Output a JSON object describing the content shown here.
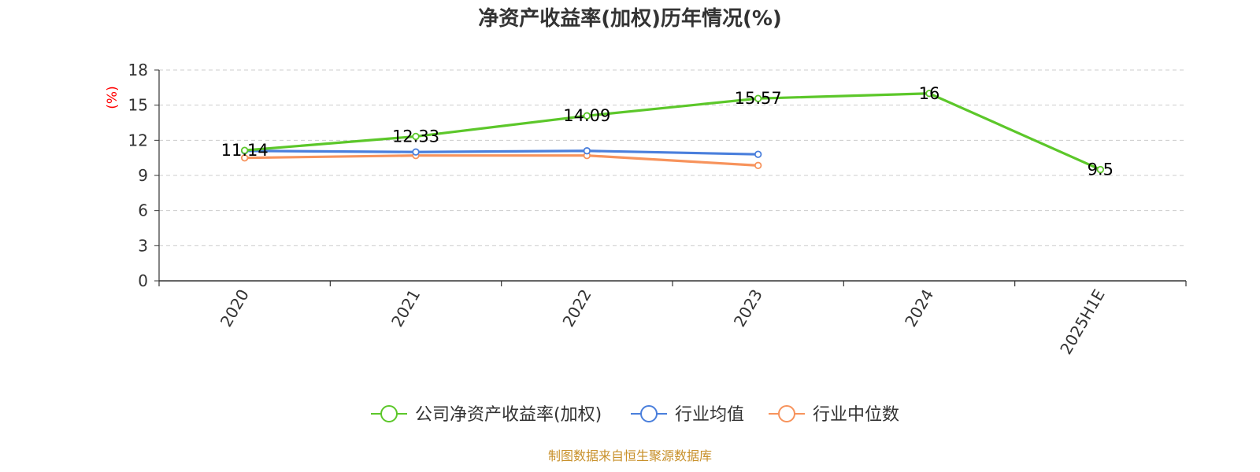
{
  "chart_data": {
    "type": "line",
    "title": "净资产收益率(加权)历年情况(%)",
    "ylabel": "(%)",
    "categories": [
      "2020",
      "2021",
      "2022",
      "2023",
      "2024",
      "2025H1E"
    ],
    "ylim": [
      0,
      18
    ],
    "yticks": [
      "0",
      "3",
      "6",
      "9",
      "12",
      "15",
      "18"
    ],
    "grid": true,
    "legend_position": "bottom",
    "series": [
      {
        "name": "公司净资产收益率(加权)",
        "color": "#5cc72a",
        "values": [
          11.14,
          12.33,
          14.09,
          15.57,
          16,
          9.5
        ],
        "labels": [
          "11.14",
          "12.33",
          "14.09",
          "15.57",
          "16",
          "9.5"
        ],
        "show_labels": true
      },
      {
        "name": "行业均值",
        "color": "#4a7fdc",
        "values": [
          11.1,
          11.0,
          11.1,
          10.8,
          null,
          null
        ],
        "show_labels": false
      },
      {
        "name": "行业中位数",
        "color": "#f7935c",
        "values": [
          10.5,
          10.7,
          10.7,
          9.85,
          null,
          null
        ],
        "show_labels": false
      }
    ],
    "source": "制图数据来自恒生聚源数据库"
  }
}
